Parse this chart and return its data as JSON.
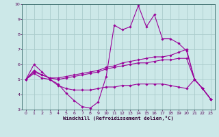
{
  "xlabel": "Windchill (Refroidissement éolien,°C)",
  "bg_color": "#cce8e8",
  "grid_color": "#aacccc",
  "line_color": "#990099",
  "xlim": [
    -0.5,
    23.5
  ],
  "ylim": [
    3,
    10
  ],
  "yticks": [
    3,
    4,
    5,
    6,
    7,
    8,
    9,
    10
  ],
  "xticks": [
    0,
    1,
    2,
    3,
    4,
    5,
    6,
    7,
    8,
    9,
    10,
    11,
    12,
    13,
    14,
    15,
    16,
    17,
    18,
    19,
    20,
    21,
    22,
    23
  ],
  "series": [
    [
      0,
      5.0,
      1,
      6.0,
      2,
      5.5,
      3,
      5.0,
      4,
      4.7,
      5,
      4.1,
      6,
      3.6,
      7,
      3.2,
      8,
      3.1,
      9,
      3.5,
      10,
      5.2,
      11,
      8.6,
      12,
      8.3,
      13,
      8.5,
      14,
      9.9,
      15,
      8.5,
      16,
      9.3,
      17,
      7.7,
      18,
      7.7,
      19,
      7.4,
      20,
      6.9,
      21,
      5.0,
      22,
      4.4,
      23,
      3.7
    ],
    [
      0,
      5.0,
      1,
      5.6,
      2,
      5.3,
      3,
      5.1,
      4,
      5.1,
      5,
      5.2,
      6,
      5.3,
      7,
      5.4,
      8,
      5.5,
      9,
      5.6,
      10,
      5.8,
      11,
      5.9,
      12,
      6.1,
      13,
      6.2,
      14,
      6.3,
      15,
      6.4,
      16,
      6.5,
      17,
      6.5,
      18,
      6.6,
      19,
      6.8,
      20,
      7.0,
      21,
      5.0,
      22,
      4.4,
      23,
      3.7
    ],
    [
      0,
      5.0,
      1,
      5.5,
      2,
      5.3,
      3,
      5.1,
      4,
      5.0,
      5,
      5.1,
      6,
      5.2,
      7,
      5.3,
      8,
      5.4,
      9,
      5.5,
      10,
      5.7,
      11,
      5.8,
      12,
      5.9,
      13,
      6.0,
      14,
      6.1,
      15,
      6.1,
      16,
      6.2,
      17,
      6.3,
      18,
      6.3,
      19,
      6.4,
      20,
      6.4,
      21,
      5.0,
      22,
      4.4,
      23,
      3.7
    ],
    [
      0,
      5.0,
      1,
      5.4,
      2,
      5.1,
      3,
      5.0,
      4,
      4.6,
      5,
      4.4,
      6,
      4.3,
      7,
      4.3,
      8,
      4.3,
      9,
      4.4,
      10,
      4.5,
      11,
      4.5,
      12,
      4.6,
      13,
      4.6,
      14,
      4.7,
      15,
      4.7,
      16,
      4.7,
      17,
      4.7,
      18,
      4.6,
      19,
      4.5,
      20,
      4.4,
      21,
      5.0,
      22,
      4.4,
      23,
      3.7
    ]
  ]
}
